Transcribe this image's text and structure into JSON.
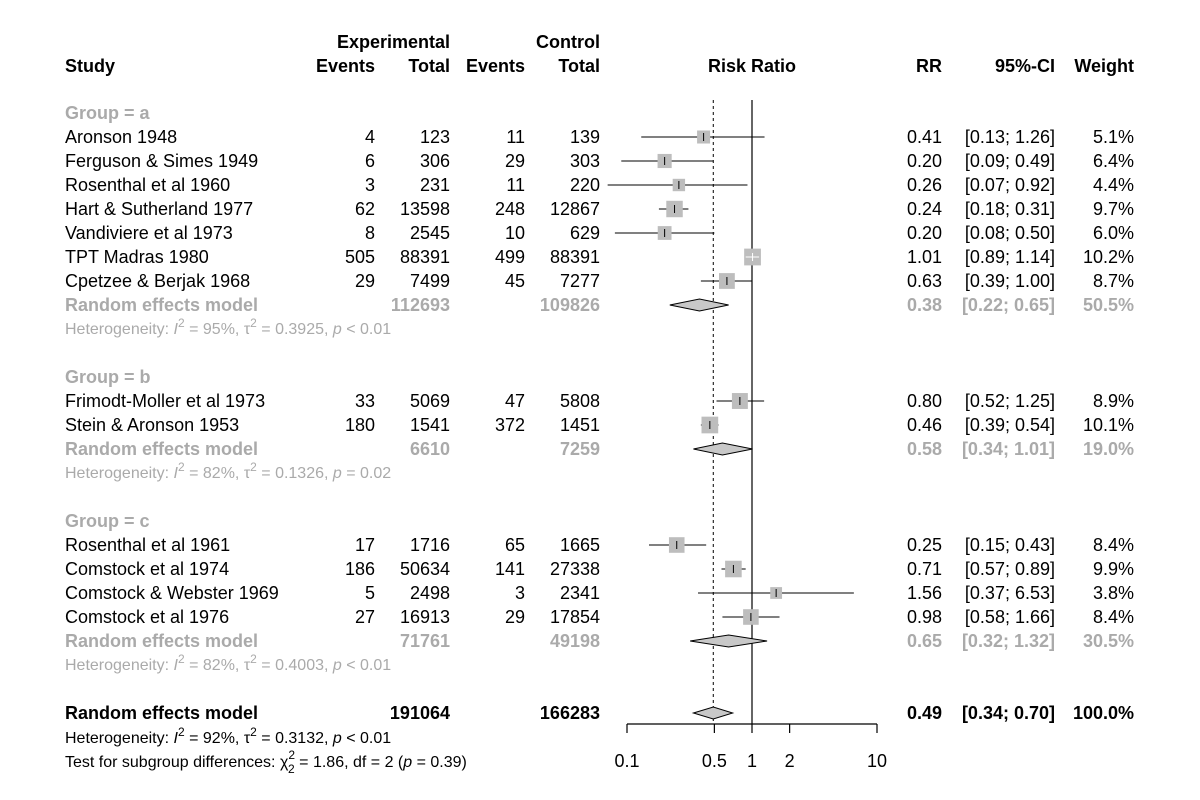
{
  "chart_data": {
    "type": "forest",
    "headers": {
      "study": "Study",
      "experimental": "Experimental",
      "control": "Control",
      "events": "Events",
      "total": "Total",
      "plot": "Risk Ratio",
      "rr": "RR",
      "ci": "95%-CI",
      "weight": "Weight"
    },
    "colors": {
      "group": "#aaaaaa",
      "square": "#bdbdbd",
      "diamond": "#c8c8c8",
      "text": "#000000"
    },
    "x_axis": {
      "scale": "log",
      "ticks": [
        0.1,
        0.5,
        1,
        2,
        10
      ],
      "tick_labels": [
        "0.1",
        "0.5",
        "1",
        "2",
        "10"
      ],
      "reference": 1,
      "overall_reference": 0.49
    },
    "groups": [
      {
        "label": "Group = a",
        "studies": [
          {
            "study": "Aronson 1948",
            "e_events": "4",
            "e_total": "123",
            "c_events": "11",
            "c_total": "139",
            "rr": 0.41,
            "lower": 0.13,
            "upper": 1.26,
            "rr_text": "0.41",
            "ci_text": "[0.13; 1.26]",
            "weight": "5.1%",
            "weight_value": 5.1
          },
          {
            "study": "Ferguson & Simes 1949",
            "e_events": "6",
            "e_total": "306",
            "c_events": "29",
            "c_total": "303",
            "rr": 0.2,
            "lower": 0.09,
            "upper": 0.49,
            "rr_text": "0.20",
            "ci_text": "[0.09; 0.49]",
            "weight": "6.4%",
            "weight_value": 6.4
          },
          {
            "study": "Rosenthal et al 1960",
            "e_events": "3",
            "e_total": "231",
            "c_events": "11",
            "c_total": "220",
            "rr": 0.26,
            "lower": 0.07,
            "upper": 0.92,
            "rr_text": "0.26",
            "ci_text": "[0.07; 0.92]",
            "weight": "4.4%",
            "weight_value": 4.4
          },
          {
            "study": "Hart & Sutherland 1977",
            "e_events": "62",
            "e_total": "13598",
            "c_events": "248",
            "c_total": "12867",
            "rr": 0.24,
            "lower": 0.18,
            "upper": 0.31,
            "rr_text": "0.24",
            "ci_text": "[0.18; 0.31]",
            "weight": "9.7%",
            "weight_value": 9.7
          },
          {
            "study": "Vandiviere et al 1973",
            "e_events": "8",
            "e_total": "2545",
            "c_events": "10",
            "c_total": "629",
            "rr": 0.2,
            "lower": 0.08,
            "upper": 0.5,
            "rr_text": "0.20",
            "ci_text": "[0.08; 0.50]",
            "weight": "6.0%",
            "weight_value": 6.0
          },
          {
            "study": "TPT Madras 1980",
            "e_events": "505",
            "e_total": "88391",
            "c_events": "499",
            "c_total": "88391",
            "rr": 1.01,
            "lower": 0.89,
            "upper": 1.14,
            "rr_text": "1.01",
            "ci_text": "[0.89; 1.14]",
            "weight": "10.2%",
            "weight_value": 10.2
          },
          {
            "study": "Cpetzee & Berjak 1968",
            "e_events": "29",
            "e_total": "7499",
            "c_events": "45",
            "c_total": "7277",
            "rr": 0.63,
            "lower": 0.39,
            "upper": 1.0,
            "rr_text": "0.63",
            "ci_text": "[0.39; 1.00]",
            "weight": "8.7%",
            "weight_value": 8.7
          }
        ],
        "model": {
          "label": "Random effects model",
          "e_total": "112693",
          "c_total": "109826",
          "rr": 0.38,
          "lower": 0.22,
          "upper": 0.65,
          "rr_text": "0.38",
          "ci_text": "[0.22; 0.65]",
          "weight": "50.5%"
        },
        "heterogeneity": {
          "prefix": "Heterogeneity: ",
          "i2_symbol": "I",
          "sup2": "2",
          "i2_value": " = 95%, ",
          "tau_symbol": "τ",
          "tau_value": " = 0.3925, ",
          "p_symbol": "p",
          "p_value": " < 0.01"
        }
      },
      {
        "label": "Group = b",
        "studies": [
          {
            "study": "Frimodt-Moller et al 1973",
            "e_events": "33",
            "e_total": "5069",
            "c_events": "47",
            "c_total": "5808",
            "rr": 0.8,
            "lower": 0.52,
            "upper": 1.25,
            "rr_text": "0.80",
            "ci_text": "[0.52; 1.25]",
            "weight": "8.9%",
            "weight_value": 8.9
          },
          {
            "study": "Stein & Aronson 1953",
            "e_events": "180",
            "e_total": "1541",
            "c_events": "372",
            "c_total": "1451",
            "rr": 0.46,
            "lower": 0.39,
            "upper": 0.54,
            "rr_text": "0.46",
            "ci_text": "[0.39; 0.54]",
            "weight": "10.1%",
            "weight_value": 10.1
          }
        ],
        "model": {
          "label": "Random effects model",
          "e_total": "6610",
          "c_total": "7259",
          "rr": 0.58,
          "lower": 0.34,
          "upper": 1.01,
          "rr_text": "0.58",
          "ci_text": "[0.34; 1.01]",
          "weight": "19.0%"
        },
        "heterogeneity": {
          "prefix": "Heterogeneity: ",
          "i2_symbol": "I",
          "sup2": "2",
          "i2_value": " = 82%, ",
          "tau_symbol": "τ",
          "tau_value": " = 0.1326, ",
          "p_symbol": "p",
          "p_value": " = 0.02"
        }
      },
      {
        "label": "Group = c",
        "studies": [
          {
            "study": "Rosenthal et al 1961",
            "e_events": "17",
            "e_total": "1716",
            "c_events": "65",
            "c_total": "1665",
            "rr": 0.25,
            "lower": 0.15,
            "upper": 0.43,
            "rr_text": "0.25",
            "ci_text": "[0.15; 0.43]",
            "weight": "8.4%",
            "weight_value": 8.4
          },
          {
            "study": "Comstock et al 1974",
            "e_events": "186",
            "e_total": "50634",
            "c_events": "141",
            "c_total": "27338",
            "rr": 0.71,
            "lower": 0.57,
            "upper": 0.89,
            "rr_text": "0.71",
            "ci_text": "[0.57; 0.89]",
            "weight": "9.9%",
            "weight_value": 9.9
          },
          {
            "study": "Comstock & Webster 1969",
            "e_events": "5",
            "e_total": "2498",
            "c_events": "3",
            "c_total": "2341",
            "rr": 1.56,
            "lower": 0.37,
            "upper": 6.53,
            "rr_text": "1.56",
            "ci_text": "[0.37; 6.53]",
            "weight": "3.8%",
            "weight_value": 3.8
          },
          {
            "study": "Comstock et al 1976",
            "e_events": "27",
            "e_total": "16913",
            "c_events": "29",
            "c_total": "17854",
            "rr": 0.98,
            "lower": 0.58,
            "upper": 1.66,
            "rr_text": "0.98",
            "ci_text": "[0.58; 1.66]",
            "weight": "8.4%",
            "weight_value": 8.4
          }
        ],
        "model": {
          "label": "Random effects model",
          "e_total": "71761",
          "c_total": "49198",
          "rr": 0.65,
          "lower": 0.32,
          "upper": 1.32,
          "rr_text": "0.65",
          "ci_text": "[0.32; 1.32]",
          "weight": "30.5%"
        },
        "heterogeneity": {
          "prefix": "Heterogeneity: ",
          "i2_symbol": "I",
          "sup2": "2",
          "i2_value": " = 82%, ",
          "tau_symbol": "τ",
          "tau_value": " = 0.4003, ",
          "p_symbol": "p",
          "p_value": " < 0.01"
        }
      }
    ],
    "overall": {
      "label": "Random effects model",
      "e_total": "191064",
      "c_total": "166283",
      "rr": 0.49,
      "lower": 0.34,
      "upper": 0.7,
      "rr_text": "0.49",
      "ci_text": "[0.34; 0.70]",
      "weight": "100.0%",
      "heterogeneity": {
        "prefix": "Heterogeneity: ",
        "i2_symbol": "I",
        "sup2": "2",
        "i2_value": " = 92%, ",
        "tau_symbol": "τ",
        "tau_value": " = 0.3132, ",
        "p_symbol": "p",
        "p_value": " < 0.01"
      },
      "subgroup_test": {
        "prefix": "Test for subgroup differences: ",
        "chi_symbol": "χ",
        "sup": "2",
        "sub": "2",
        "value": " = 1.86, df = 2 (",
        "p_symbol": "p",
        "p_value": " = 0.39)"
      }
    }
  }
}
